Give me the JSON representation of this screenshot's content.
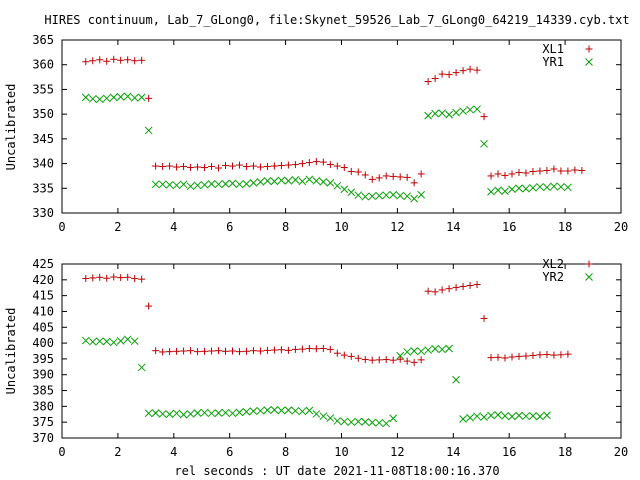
{
  "title": "HIRES continuum, Lab_7_GLong0, file:Skynet_59526_Lab_7_GLong0_64219_14339.cyb.txt",
  "xlabel": "rel seconds : UT date 2021-11-08T18:00:16.370",
  "colors": {
    "red": "#c00000",
    "green": "#00a000"
  },
  "chart_data": [
    {
      "type": "scatter",
      "ylabel": "Uncalibrated",
      "xlim": [
        0,
        20
      ],
      "ylim": [
        330,
        365
      ],
      "xticks": [
        0,
        2,
        4,
        6,
        8,
        10,
        12,
        14,
        16,
        18,
        20
      ],
      "yticks": [
        330,
        335,
        340,
        345,
        350,
        355,
        360,
        365
      ],
      "grid": false,
      "legend": "top-right",
      "series": [
        {
          "name": "XL1",
          "marker": "plus",
          "color": "#c00000",
          "x": [
            0.85,
            1.1,
            1.35,
            1.6,
            1.85,
            2.1,
            2.35,
            2.6,
            2.85,
            3.1,
            3.35,
            3.6,
            3.85,
            4.1,
            4.35,
            4.6,
            4.85,
            5.1,
            5.35,
            5.6,
            5.85,
            6.1,
            6.35,
            6.6,
            6.85,
            7.1,
            7.35,
            7.6,
            7.85,
            8.1,
            8.35,
            8.6,
            8.85,
            9.1,
            9.35,
            9.6,
            9.85,
            10.1,
            10.35,
            10.6,
            10.85,
            11.1,
            11.35,
            11.6,
            11.85,
            12.1,
            12.35,
            12.6,
            12.85,
            13.1,
            13.35,
            13.6,
            13.85,
            14.1,
            14.35,
            14.6,
            14.85,
            15.1,
            15.35,
            15.6,
            15.85,
            16.1,
            16.35,
            16.6,
            16.85,
            17.1,
            17.35,
            17.6,
            17.85,
            18.1,
            18.35,
            18.6,
            18.85,
            19.1,
            19.35
          ],
          "y": [
            360.6,
            360.8,
            361.0,
            360.7,
            361.1,
            360.9,
            361.0,
            360.8,
            360.9,
            353.2,
            339.5,
            339.4,
            339.5,
            339.3,
            339.4,
            339.2,
            339.3,
            339.2,
            339.4,
            339.1,
            339.6,
            339.5,
            339.7,
            339.4,
            339.5,
            339.3,
            339.4,
            339.5,
            339.6,
            339.7,
            339.8,
            340.0,
            340.2,
            340.4,
            340.3,
            339.8,
            339.5,
            339.2,
            338.4,
            338.3,
            337.7,
            336.8,
            337.1,
            337.5,
            337.4,
            337.3,
            337.2,
            336.1,
            337.9,
            356.6,
            357.2,
            358.1,
            358.0,
            358.4,
            358.8,
            359.1,
            358.9,
            349.5,
            337.5,
            337.9,
            337.6,
            337.9,
            338.2,
            338.1,
            338.4,
            338.5,
            338.6,
            338.9,
            338.5,
            338.5,
            338.7,
            338.6,
            null,
            null,
            null
          ]
        },
        {
          "name": "YR1",
          "marker": "cross",
          "color": "#00a000",
          "x": [
            0.85,
            1.1,
            1.35,
            1.6,
            1.85,
            2.1,
            2.35,
            2.6,
            2.85,
            3.1,
            3.35,
            3.6,
            3.85,
            4.1,
            4.35,
            4.6,
            4.85,
            5.1,
            5.35,
            5.6,
            5.85,
            6.1,
            6.35,
            6.6,
            6.85,
            7.1,
            7.35,
            7.6,
            7.85,
            8.1,
            8.35,
            8.6,
            8.85,
            9.1,
            9.35,
            9.6,
            9.85,
            10.1,
            10.35,
            10.6,
            10.85,
            11.1,
            11.35,
            11.6,
            11.85,
            12.1,
            12.35,
            12.6,
            12.85,
            13.1,
            13.35,
            13.6,
            13.85,
            14.1,
            14.35,
            14.6,
            14.85,
            15.1,
            15.35,
            15.6,
            15.85,
            16.1,
            16.35,
            16.6,
            16.85,
            17.1,
            17.35,
            17.6,
            17.85,
            18.1,
            18.35,
            18.6,
            18.85,
            19.1,
            19.35
          ],
          "y": [
            353.4,
            353.1,
            353.0,
            353.2,
            353.4,
            353.5,
            353.6,
            353.3,
            353.4,
            346.7,
            335.8,
            335.8,
            335.7,
            335.6,
            335.8,
            335.4,
            335.6,
            335.7,
            335.9,
            335.8,
            335.9,
            336.0,
            335.8,
            335.9,
            336.1,
            336.3,
            336.5,
            336.4,
            336.6,
            336.5,
            336.7,
            336.4,
            336.8,
            336.5,
            336.3,
            336.1,
            335.5,
            334.8,
            334.2,
            333.6,
            333.3,
            333.4,
            333.5,
            333.6,
            333.7,
            333.5,
            333.4,
            332.9,
            333.7,
            349.7,
            350.1,
            350.2,
            349.9,
            350.3,
            350.6,
            350.9,
            351.0,
            344.0,
            334.3,
            334.6,
            334.4,
            334.8,
            335.0,
            334.9,
            335.1,
            335.3,
            335.2,
            335.4,
            335.3,
            335.2,
            null,
            null,
            null,
            null,
            null
          ]
        }
      ]
    },
    {
      "type": "scatter",
      "ylabel": "Uncalibrated",
      "xlim": [
        0,
        20
      ],
      "ylim": [
        370,
        425
      ],
      "xticks": [
        0,
        2,
        4,
        6,
        8,
        10,
        12,
        14,
        16,
        18,
        20
      ],
      "yticks": [
        370,
        375,
        380,
        385,
        390,
        395,
        400,
        405,
        410,
        415,
        420,
        425
      ],
      "grid": false,
      "legend": "top-right",
      "series": [
        {
          "name": "XL2",
          "marker": "plus",
          "color": "#c00000",
          "x": [
            0.85,
            1.1,
            1.35,
            1.6,
            1.85,
            2.1,
            2.35,
            2.6,
            2.85,
            3.1,
            3.35,
            3.6,
            3.85,
            4.1,
            4.35,
            4.6,
            4.85,
            5.1,
            5.35,
            5.6,
            5.85,
            6.1,
            6.35,
            6.6,
            6.85,
            7.1,
            7.35,
            7.6,
            7.85,
            8.1,
            8.35,
            8.6,
            8.85,
            9.1,
            9.35,
            9.6,
            9.85,
            10.1,
            10.35,
            10.6,
            10.85,
            11.1,
            11.35,
            11.6,
            11.85,
            12.1,
            12.35,
            12.6,
            12.85,
            13.1,
            13.35,
            13.6,
            13.85,
            14.1,
            14.35,
            14.6,
            14.85,
            15.1,
            15.35,
            15.6,
            15.85,
            16.1,
            16.35,
            16.6,
            16.85,
            17.1,
            17.35,
            17.6,
            17.85,
            18.1,
            18.35,
            18.6,
            18.85,
            19.1,
            19.35
          ],
          "y": [
            420.4,
            420.6,
            420.8,
            420.5,
            420.9,
            420.7,
            420.8,
            420.4,
            420.2,
            411.7,
            397.6,
            397.2,
            397.3,
            397.4,
            397.5,
            397.6,
            397.3,
            397.4,
            397.5,
            397.6,
            397.4,
            397.5,
            397.3,
            397.4,
            397.6,
            397.5,
            397.7,
            397.8,
            397.9,
            397.7,
            398.0,
            398.1,
            398.3,
            398.2,
            398.3,
            398.0,
            396.8,
            396.2,
            395.8,
            395.2,
            394.8,
            394.6,
            394.7,
            394.8,
            394.6,
            394.9,
            394.3,
            393.9,
            394.7,
            416.4,
            416.2,
            416.8,
            417.2,
            417.6,
            417.9,
            418.2,
            418.5,
            407.8,
            395.4,
            395.5,
            395.3,
            395.6,
            395.8,
            395.9,
            396.1,
            396.3,
            396.4,
            396.2,
            396.3,
            396.5,
            null,
            null,
            null,
            null,
            null
          ]
        },
        {
          "name": "YR2",
          "marker": "cross",
          "color": "#00a000",
          "x": [
            0.85,
            1.1,
            1.35,
            1.6,
            1.85,
            2.1,
            2.35,
            2.6,
            2.85,
            3.1,
            3.35,
            3.6,
            3.85,
            4.1,
            4.35,
            4.6,
            4.85,
            5.1,
            5.35,
            5.6,
            5.85,
            6.1,
            6.35,
            6.6,
            6.85,
            7.1,
            7.35,
            7.6,
            7.85,
            8.1,
            8.35,
            8.6,
            8.85,
            9.1,
            9.35,
            9.6,
            9.85,
            10.1,
            10.35,
            10.6,
            10.85,
            11.1,
            11.35,
            11.6,
            11.85,
            12.1,
            12.35,
            12.6,
            12.85,
            13.1,
            13.35,
            13.6,
            13.85,
            14.1,
            14.35,
            14.6,
            14.85,
            15.1,
            15.35,
            15.6,
            15.85,
            16.1,
            16.35,
            16.6,
            16.85,
            17.1,
            17.35,
            17.6,
            17.85,
            18.1,
            18.35,
            18.6,
            18.85,
            19.1,
            19.35
          ],
          "y": [
            400.8,
            400.4,
            400.6,
            400.5,
            400.2,
            400.7,
            401.2,
            400.6,
            392.3,
            377.8,
            377.9,
            377.6,
            377.5,
            377.8,
            377.4,
            377.6,
            377.9,
            378.0,
            377.8,
            377.9,
            378.0,
            377.8,
            378.1,
            378.3,
            378.5,
            378.6,
            378.8,
            378.9,
            378.7,
            378.8,
            378.6,
            378.4,
            378.7,
            377.6,
            376.9,
            376.3,
            375.4,
            375.2,
            375.0,
            375.2,
            375.1,
            374.9,
            374.8,
            374.6,
            376.2,
            396.0,
            397.2,
            397.5,
            397.4,
            397.8,
            398.2,
            398.0,
            398.3,
            388.4,
            376.0,
            376.4,
            376.9,
            376.6,
            377.1,
            377.3,
            377.0,
            376.8,
            377.1,
            376.9,
            377.0,
            376.8,
            377.2,
            null,
            null,
            null,
            null,
            null,
            null,
            null,
            null
          ]
        }
      ]
    }
  ]
}
